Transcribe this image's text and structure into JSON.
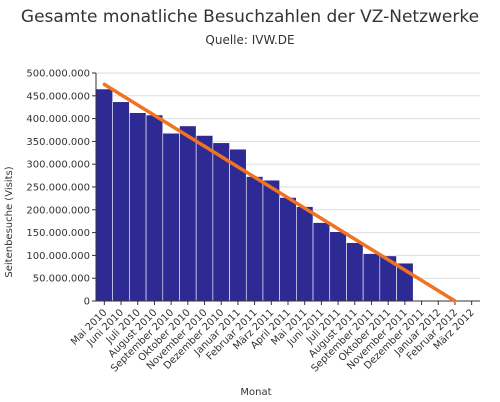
{
  "chart_data": {
    "type": "bar",
    "title": "Gesamte monatliche Besuchzahlen der VZ-Netzwerke",
    "subtitle": "Quelle: IVW.DE",
    "xlabel": "Monat",
    "ylabel": "Seitenbesuche (Visits)",
    "ylim": [
      0,
      500000000
    ],
    "yticks": [
      {
        "value": 0,
        "label": "0"
      },
      {
        "value": 50000000,
        "label": "50.000.000"
      },
      {
        "value": 100000000,
        "label": "100.000.000"
      },
      {
        "value": 150000000,
        "label": "150.000.000"
      },
      {
        "value": 200000000,
        "label": "200.000.000"
      },
      {
        "value": 250000000,
        "label": "250.000.000"
      },
      {
        "value": 300000000,
        "label": "300.000.000"
      },
      {
        "value": 350000000,
        "label": "350.000.000"
      },
      {
        "value": 400000000,
        "label": "400.000.000"
      },
      {
        "value": 450000000,
        "label": "450.000.000"
      },
      {
        "value": 500000000,
        "label": "500.000.000"
      }
    ],
    "categories": [
      "Mai 2010",
      "Juni 2010",
      "Juli 2010",
      "August 2010",
      "September 2010",
      "Oktober 2010",
      "November 2010",
      "Dezember 2010",
      "Januar 2011",
      "Februar 2011",
      "März 2011",
      "April 2011",
      "Mai 2011",
      "Juni 2011",
      "Juli 2011",
      "August 2011",
      "September 2011",
      "Oktober 2011",
      "November 2011",
      "Dezember 2011",
      "Januar 2012",
      "Februar 2012",
      "März 2012"
    ],
    "values": [
      465000000,
      437000000,
      413000000,
      408000000,
      368000000,
      384000000,
      363000000,
      347000000,
      333000000,
      273000000,
      265000000,
      227000000,
      207000000,
      172000000,
      152000000,
      128000000,
      104000000,
      99000000,
      83000000,
      null,
      null,
      null,
      null
    ],
    "trendline": {
      "start": {
        "category": "Mai 2010",
        "value": 475000000
      },
      "end": {
        "category": "Februar 2012",
        "value": 0
      }
    },
    "grid": true,
    "colors": {
      "bars": "#2e2a94",
      "trendline": "#f07322",
      "grid": "#dddddd",
      "axis": "#333333"
    }
  }
}
